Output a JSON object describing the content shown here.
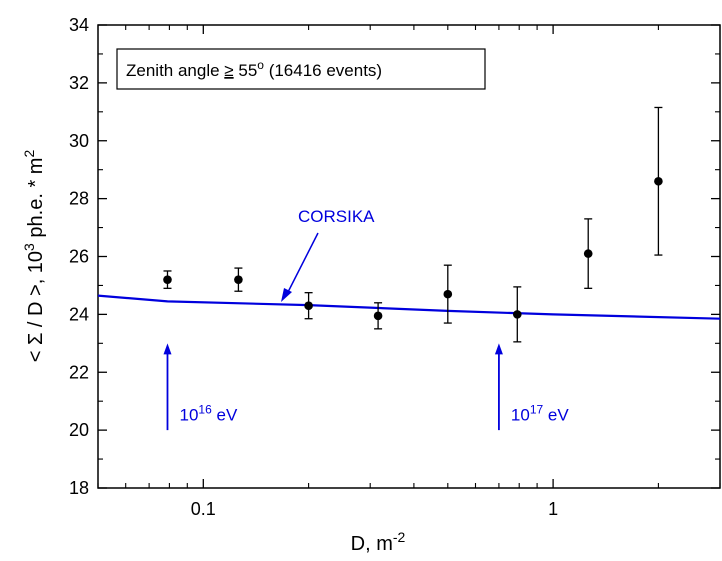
{
  "chart_data": {
    "type": "scatter",
    "x_scale": "log",
    "xlim": [
      0.05,
      3
    ],
    "ylim": [
      18,
      34
    ],
    "xlabel": {
      "main": "D, m",
      "sup": "-2"
    },
    "ylabel": {
      "pre": "< Σ / D >, 10",
      "sup1": "3",
      "mid": " ph.e. * m",
      "sup2": "2"
    },
    "x_ticks": [
      {
        "value": 0.1,
        "label": "0.1"
      },
      {
        "value": 1,
        "label": "1"
      }
    ],
    "y_ticks": [
      {
        "value": 18,
        "label": "18"
      },
      {
        "value": 20,
        "label": "20"
      },
      {
        "value": 22,
        "label": "22"
      },
      {
        "value": 24,
        "label": "24"
      },
      {
        "value": 26,
        "label": "26"
      },
      {
        "value": 28,
        "label": "28"
      },
      {
        "value": 30,
        "label": "30"
      },
      {
        "value": 32,
        "label": "32"
      },
      {
        "value": 34,
        "label": "34"
      }
    ],
    "legend": {
      "pre": "Zenith angle ",
      "ge": "≥",
      "val": " 55",
      "sup": "o",
      "post": " (16416 events)"
    },
    "points": [
      {
        "x": 0.079,
        "y": 25.2,
        "err": 0.3
      },
      {
        "x": 0.126,
        "y": 25.2,
        "err": 0.4
      },
      {
        "x": 0.2,
        "y": 24.3,
        "err": 0.45
      },
      {
        "x": 0.316,
        "y": 23.95,
        "err": 0.45
      },
      {
        "x": 0.5,
        "y": 24.7,
        "err": 1.0
      },
      {
        "x": 0.79,
        "y": 24.0,
        "err": 0.95
      },
      {
        "x": 1.26,
        "y": 26.1,
        "err": 1.2
      },
      {
        "x": 2.0,
        "y": 28.6,
        "err": 2.55
      }
    ],
    "corsika": {
      "label": "CORSIKA",
      "color": "#0000dd",
      "points": [
        {
          "x": 0.05,
          "y": 24.65
        },
        {
          "x": 0.079,
          "y": 24.45
        },
        {
          "x": 0.2,
          "y": 24.32
        },
        {
          "x": 0.5,
          "y": 24.12
        },
        {
          "x": 1.0,
          "y": 24.0
        },
        {
          "x": 3.0,
          "y": 23.85
        }
      ]
    },
    "energy_markers": [
      {
        "x": 0.079,
        "y_from": 20.0,
        "y_to": 23.0,
        "base": "10",
        "sup": "16",
        "unit": " eV"
      },
      {
        "x": 0.7,
        "y_from": 20.0,
        "y_to": 23.0,
        "base": "10",
        "sup": "17",
        "unit": " eV"
      }
    ]
  }
}
